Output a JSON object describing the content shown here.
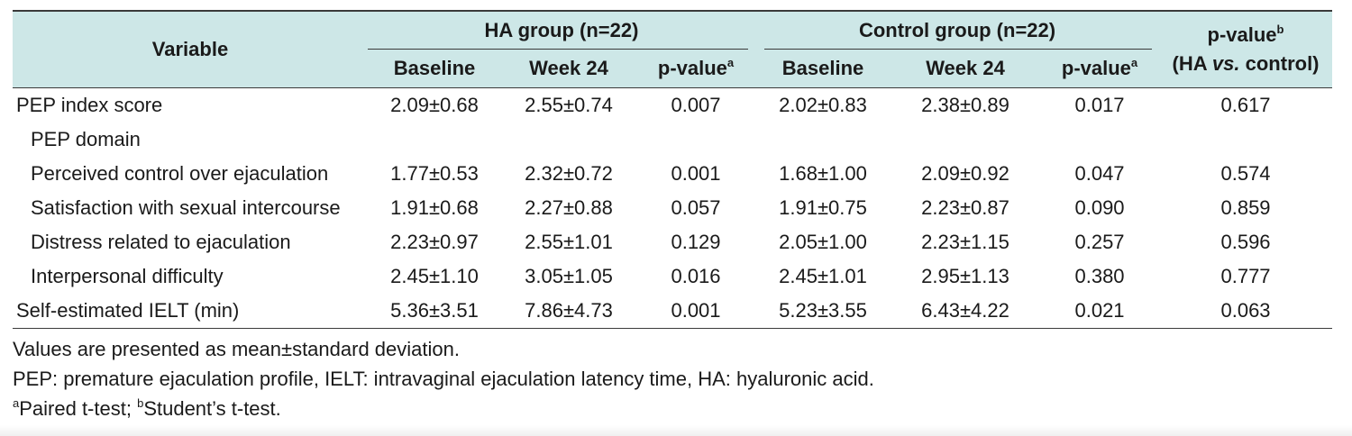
{
  "table": {
    "header": {
      "variable": "Variable",
      "ha_group": "HA group (n=22)",
      "control_group": "Control group (n=22)",
      "pvalue_between_line1": "p-value",
      "pvalue_between_sup": "b",
      "pvalue_between_line2_pre": "(HA ",
      "pvalue_between_line2_vs": "vs.",
      "pvalue_between_line2_post": " control)",
      "baseline": "Baseline",
      "week24": "Week 24",
      "pvalue_within": "p-value",
      "pvalue_within_sup": "a"
    },
    "rows": [
      {
        "label": "PEP index score",
        "indent": false,
        "ha_baseline": "2.09±0.68",
        "ha_week24": "2.55±0.74",
        "ha_p": "0.007",
        "ctrl_baseline": "2.02±0.83",
        "ctrl_week24": "2.38±0.89",
        "ctrl_p": "0.017",
        "p_between": "0.617"
      },
      {
        "label": "PEP domain",
        "indent": true,
        "ha_baseline": "",
        "ha_week24": "",
        "ha_p": "",
        "ctrl_baseline": "",
        "ctrl_week24": "",
        "ctrl_p": "",
        "p_between": ""
      },
      {
        "label": "Perceived control over ejaculation",
        "indent": true,
        "ha_baseline": "1.77±0.53",
        "ha_week24": "2.32±0.72",
        "ha_p": "0.001",
        "ctrl_baseline": "1.68±1.00",
        "ctrl_week24": "2.09±0.92",
        "ctrl_p": "0.047",
        "p_between": "0.574"
      },
      {
        "label": "Satisfaction with sexual intercourse",
        "indent": true,
        "ha_baseline": "1.91±0.68",
        "ha_week24": "2.27±0.88",
        "ha_p": "0.057",
        "ctrl_baseline": "1.91±0.75",
        "ctrl_week24": "2.23±0.87",
        "ctrl_p": "0.090",
        "p_between": "0.859"
      },
      {
        "label": "Distress related to ejaculation",
        "indent": true,
        "ha_baseline": "2.23±0.97",
        "ha_week24": "2.55±1.01",
        "ha_p": "0.129",
        "ctrl_baseline": "2.05±1.00",
        "ctrl_week24": "2.23±1.15",
        "ctrl_p": "0.257",
        "p_between": "0.596"
      },
      {
        "label": "Interpersonal difficulty",
        "indent": true,
        "ha_baseline": "2.45±1.10",
        "ha_week24": "3.05±1.05",
        "ha_p": "0.016",
        "ctrl_baseline": "2.45±1.01",
        "ctrl_week24": "2.95±1.13",
        "ctrl_p": "0.380",
        "p_between": "0.777"
      },
      {
        "label": "Self-estimated IELT (min)",
        "indent": false,
        "ha_baseline": "5.36±3.51",
        "ha_week24": "7.86±4.73",
        "ha_p": "0.001",
        "ctrl_baseline": "5.23±3.55",
        "ctrl_week24": "6.43±4.22",
        "ctrl_p": "0.021",
        "p_between": "0.063"
      }
    ]
  },
  "notes": {
    "line1": "Values are presented as mean±standard deviation.",
    "line2": "PEP: premature ejaculation profile, IELT: intravaginal ejaculation latency time, HA: hyaluronic acid.",
    "line3_sup_a": "a",
    "line3_a_text": "Paired t-test; ",
    "line3_sup_b": "b",
    "line3_b_text": "Student’s t-test."
  },
  "colors": {
    "header_bg": "#cde7e7",
    "rule": "#3a3a3a",
    "text": "#1a1a1a"
  }
}
